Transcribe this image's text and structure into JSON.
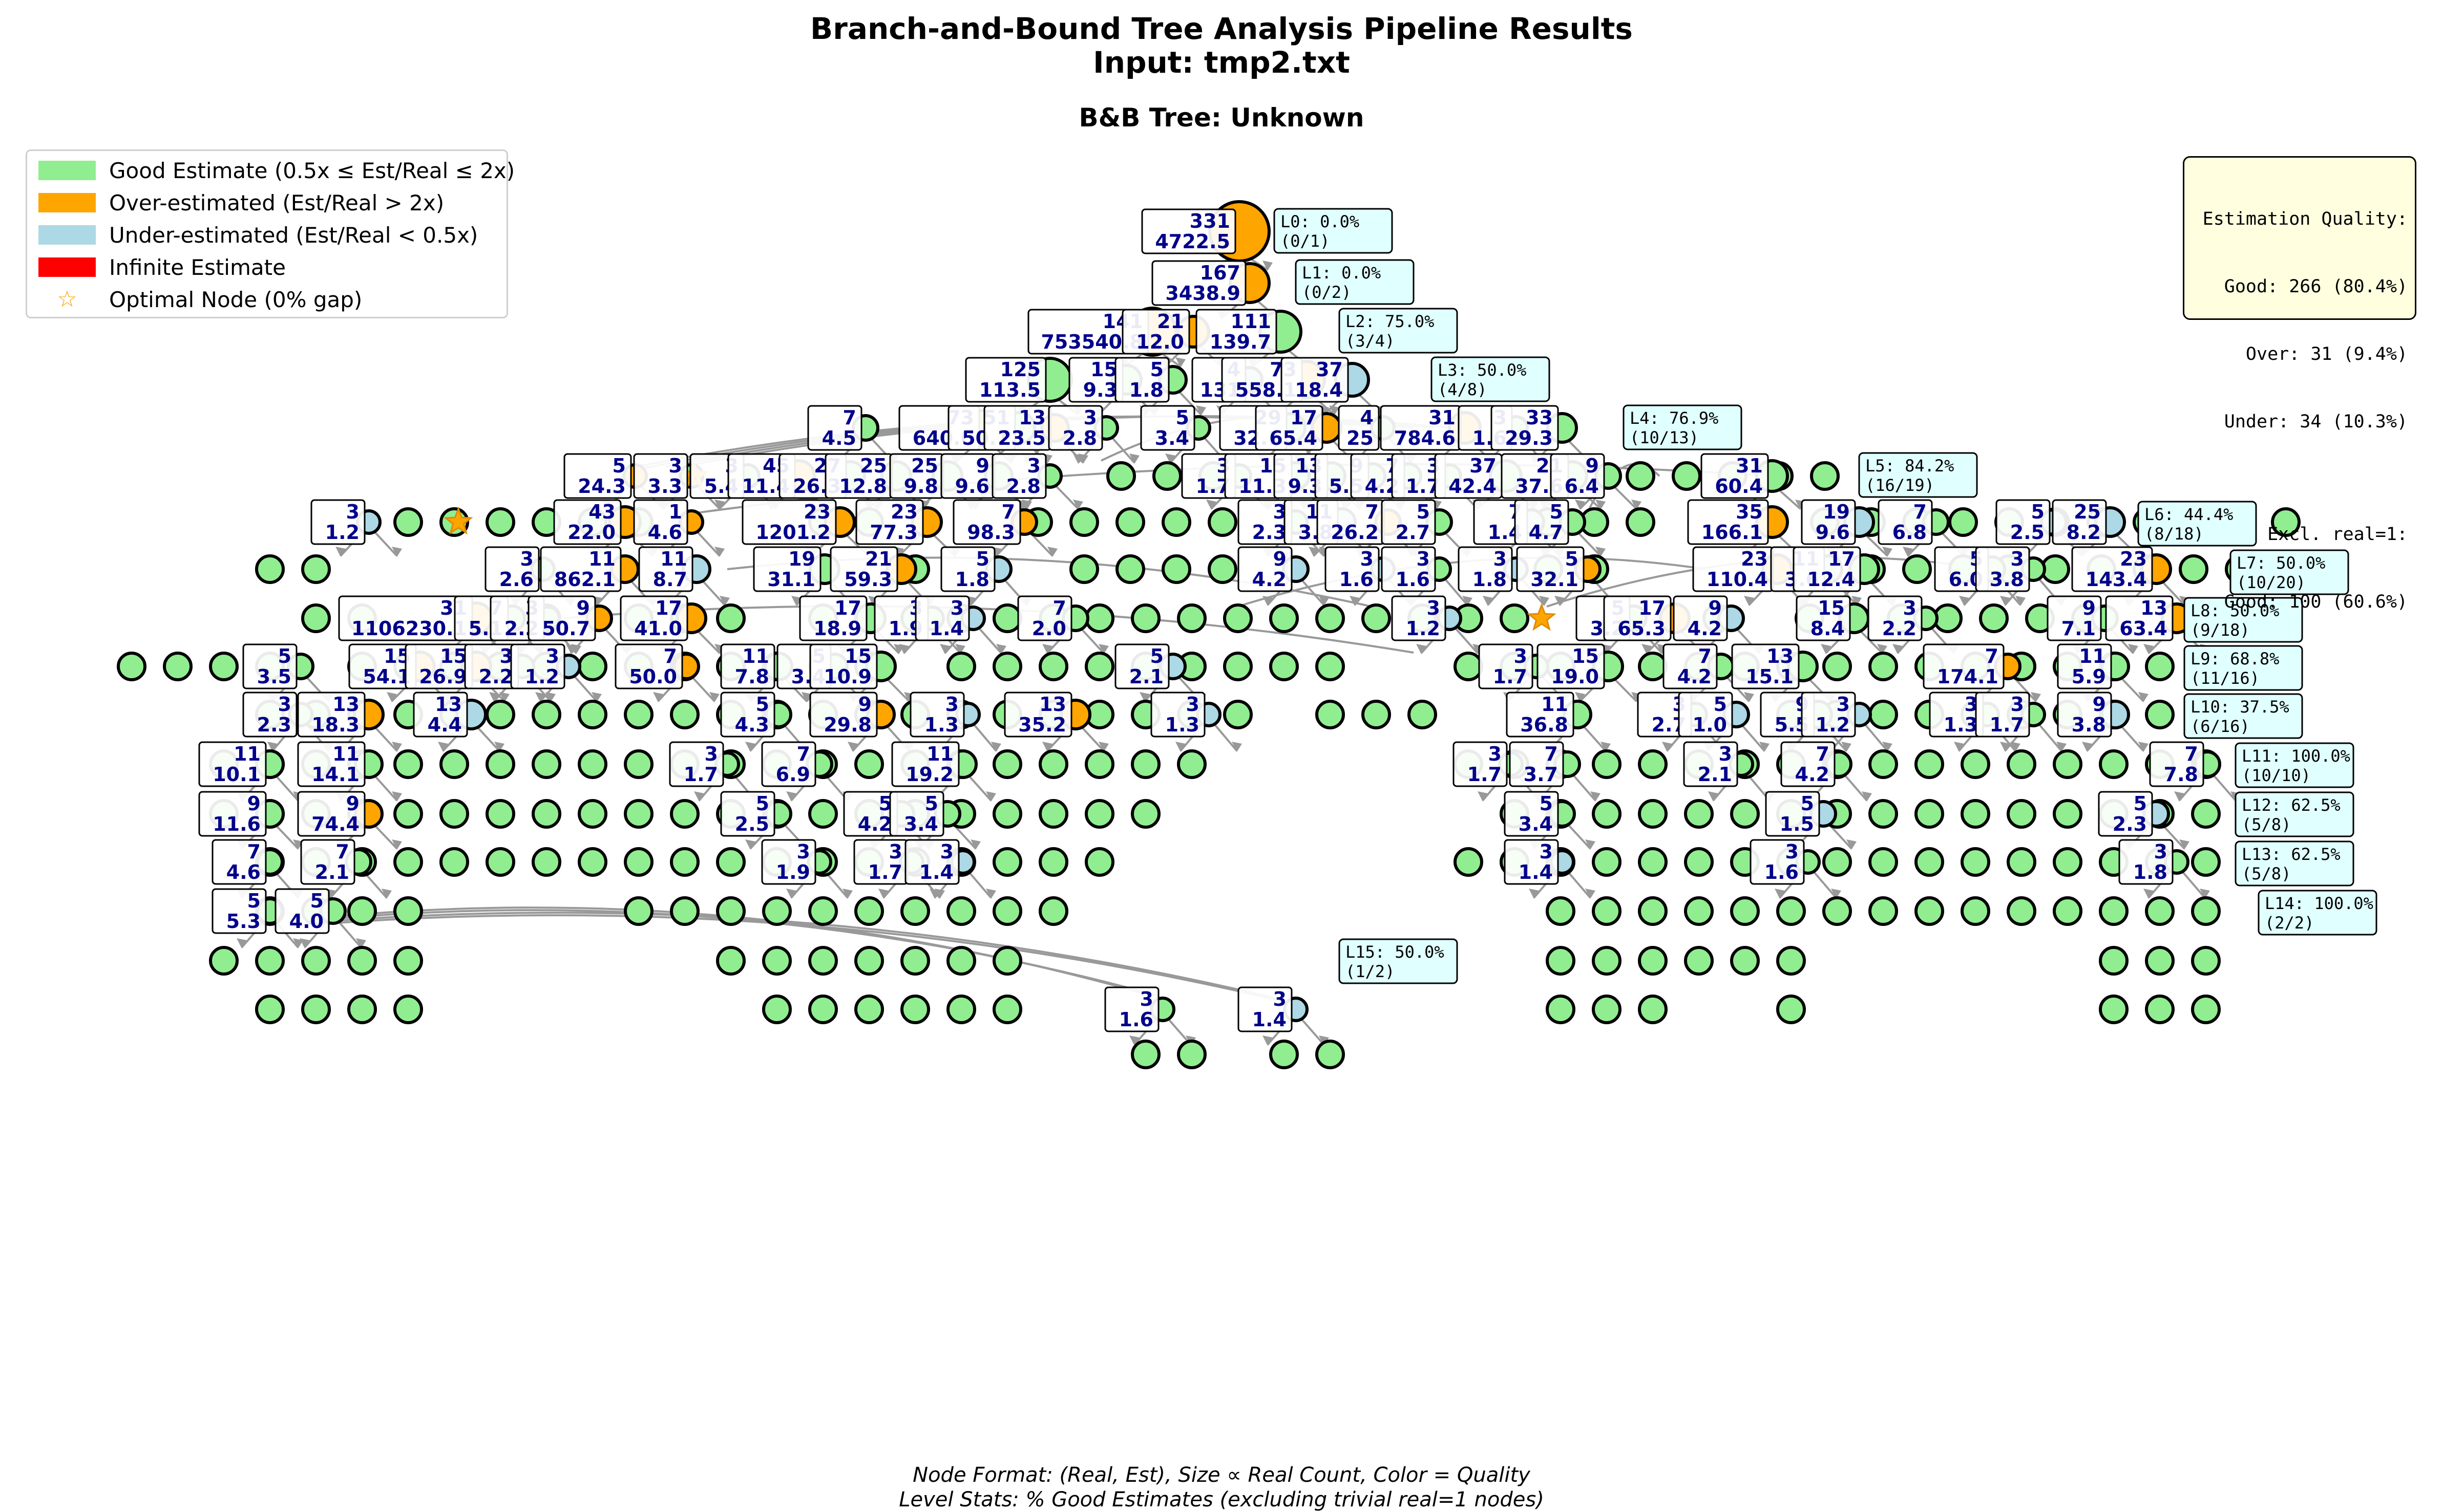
{
  "title": {
    "line1": "Branch-and-Bound Tree Analysis Pipeline Results",
    "line2": "Input: tmp2.txt"
  },
  "subtitle": "B&B Tree: Unknown",
  "legend": [
    {
      "color": "#90ee90",
      "label": "Good Estimate (0.5x ≤ Est/Real ≤ 2x)"
    },
    {
      "color": "#ffa500",
      "label": "Over-estimated (Est/Real > 2x)"
    },
    {
      "color": "#add8e6",
      "label": "Under-estimated (Est/Real < 0.5x)"
    },
    {
      "color": "#ff0000",
      "label": "Infinite Estimate"
    },
    {
      "icon": "star-icon",
      "color": "#ffa500",
      "label": "Optimal Node (0% gap)"
    }
  ],
  "quality_box": {
    "lines": [
      "Estimation Quality:",
      "Good: 266 (80.4%)",
      "Over: 31 (9.4%)",
      "Under: 34 (10.3%)",
      "",
      "Excl. real=1:",
      "Good: 100 (60.6%)"
    ]
  },
  "footer": {
    "line1": "Node Format: (Real, Est), Size ∝ Real Count, Color = Quality",
    "line2": "Level Stats: % Good Estimates (excluding trivial real=1 nodes)"
  },
  "colors": {
    "good": "#90ee90",
    "over": "#ffa500",
    "under": "#add8e6",
    "label_text": "#00008b",
    "stat_bg": "#e0ffff"
  },
  "level_stats": [
    {
      "line1": "L0: 0.0%",
      "line2": "(0/1)"
    },
    {
      "line1": "L1: 0.0%",
      "line2": "(0/2)"
    },
    {
      "line1": "L2: 75.0%",
      "line2": "(3/4)"
    },
    {
      "line1": "L3: 50.0%",
      "line2": "(4/8)"
    },
    {
      "line1": "L4: 76.9%",
      "line2": "(10/13)"
    },
    {
      "line1": "L5: 84.2%",
      "line2": "(16/19)"
    },
    {
      "line1": "L6: 44.4%",
      "line2": "(8/18)"
    },
    {
      "line1": "L7: 50.0%",
      "line2": "(10/20)"
    },
    {
      "line1": "L8: 50.0%",
      "line2": "(9/18)"
    },
    {
      "line1": "L9: 68.8%",
      "line2": "(11/16)"
    },
    {
      "line1": "L10: 37.5%",
      "line2": "(6/16)"
    },
    {
      "line1": "L11: 100.0%",
      "line2": "(10/10)"
    },
    {
      "line1": "L12: 62.5%",
      "line2": "(5/8)"
    },
    {
      "line1": "L13: 62.5%",
      "line2": "(5/8)"
    },
    {
      "line1": "L14: 100.0%",
      "line2": "(2/2)"
    },
    {
      "line1": "L15: 50.0%",
      "line2": "(1/2)"
    }
  ],
  "node_labels": [
    {
      "real": "331",
      "est": "4722.5"
    },
    {
      "real": "167",
      "est": "3438.9"
    },
    {
      "real": "141",
      "est": "753540.8"
    },
    {
      "real": "21",
      "est": "12.0"
    },
    {
      "real": "111",
      "est": "139.7"
    },
    {
      "real": "125",
      "est": "113.5"
    },
    {
      "real": "15",
      "est": "9.3"
    },
    {
      "real": "5",
      "est": "1.8"
    },
    {
      "real": "4",
      "est": "131"
    },
    {
      "real": "73",
      "est": "558.1"
    },
    {
      "real": "37",
      "est": "18.4"
    },
    {
      "real": "7",
      "est": "4.5"
    },
    {
      "real": "73",
      "est": "640.0"
    },
    {
      "real": "51",
      "est": "50.1"
    },
    {
      "real": "13",
      "est": "23.5"
    },
    {
      "real": "3",
      "est": "2.8"
    },
    {
      "real": "5",
      "est": "3.4"
    },
    {
      "real": "29",
      "est": "32.1"
    },
    {
      "real": "17",
      "est": "65.4"
    },
    {
      "real": "4",
      "est": "25"
    },
    {
      "real": "31",
      "est": "784.6"
    },
    {
      "real": "3",
      "est": "1.6"
    },
    {
      "real": "33",
      "est": "29.3"
    },
    {
      "real": "5",
      "est": "24.3"
    },
    {
      "real": "3",
      "est": "3.3"
    },
    {
      "real": "3",
      "est": "5.4"
    },
    {
      "real": "45",
      "est": "11.4"
    },
    {
      "real": "27",
      "est": "26.3"
    },
    {
      "real": "25",
      "est": "12.8"
    },
    {
      "real": "25",
      "est": "9.8"
    },
    {
      "real": "9",
      "est": "9.6"
    },
    {
      "real": "3",
      "est": "2.8"
    },
    {
      "real": "3",
      "est": "1.7"
    },
    {
      "real": "15",
      "est": "11.3"
    },
    {
      "real": "13",
      "est": "9.3"
    },
    {
      "real": "9",
      "est": "5.5"
    },
    {
      "real": "7",
      "est": "4.2"
    },
    {
      "real": "3",
      "est": "1.7"
    },
    {
      "real": "37",
      "est": "42.4"
    },
    {
      "real": "21",
      "est": "37.6"
    },
    {
      "real": "9",
      "est": "6.4"
    },
    {
      "real": "31",
      "est": "60.4"
    },
    {
      "real": "3",
      "est": "1.2"
    },
    {
      "real": "43",
      "est": "22.0"
    },
    {
      "real": "1",
      "est": "4.6"
    },
    {
      "real": "23",
      "est": "1201.2"
    },
    {
      "real": "23",
      "est": "77.3"
    },
    {
      "real": "7",
      "est": "98.3"
    },
    {
      "real": "3",
      "est": "2.3"
    },
    {
      "real": "11",
      "est": "3.8"
    },
    {
      "real": "7",
      "est": "26.2"
    },
    {
      "real": "5",
      "est": "2.7"
    },
    {
      "real": "7",
      "est": "1.4"
    },
    {
      "real": "5",
      "est": "4.7"
    },
    {
      "real": "35",
      "est": "166.1"
    },
    {
      "real": "19",
      "est": "9.6"
    },
    {
      "real": "7",
      "est": "6.8"
    },
    {
      "real": "5",
      "est": "2.5"
    },
    {
      "real": "25",
      "est": "8.2"
    },
    {
      "real": "3",
      "est": "2.6"
    },
    {
      "real": "11",
      "est": "862.1"
    },
    {
      "real": "11",
      "est": "8.7"
    },
    {
      "real": "19",
      "est": "31.1"
    },
    {
      "real": "21",
      "est": "59.3"
    },
    {
      "real": "5",
      "est": "1.8"
    },
    {
      "real": "9",
      "est": "4.2"
    },
    {
      "real": "3",
      "est": "1.6"
    },
    {
      "real": "3",
      "est": "1.6"
    },
    {
      "real": "3",
      "est": "1.8"
    },
    {
      "real": "5",
      "est": "32.1"
    },
    {
      "real": "23",
      "est": "110.4"
    },
    {
      "real": "11",
      "est": "3.6"
    },
    {
      "real": "17",
      "est": "12.4"
    },
    {
      "real": "5",
      "est": "6.0"
    },
    {
      "real": "3",
      "est": "3.8"
    },
    {
      "real": "23",
      "est": "143.4"
    },
    {
      "real": "31",
      "est": "1106230.1"
    },
    {
      "real": "7",
      "est": "5.1"
    },
    {
      "real": "3",
      "est": "2.2"
    },
    {
      "real": "9",
      "est": "50.7"
    },
    {
      "real": "17",
      "est": "41.0"
    },
    {
      "real": "17",
      "est": "18.9"
    },
    {
      "real": "3",
      "est": "1.9"
    },
    {
      "real": "3",
      "est": "1.4"
    },
    {
      "real": "7",
      "est": "2.0"
    },
    {
      "real": "3",
      "est": "1.2"
    },
    {
      "real": "5",
      "est": "3.2"
    },
    {
      "real": "17",
      "est": "65.3"
    },
    {
      "real": "9",
      "est": "4.2"
    },
    {
      "real": "15",
      "est": "8.4"
    },
    {
      "real": "3",
      "est": "2.2"
    },
    {
      "real": "9",
      "est": "7.1"
    },
    {
      "real": "13",
      "est": "63.4"
    },
    {
      "real": "5",
      "est": "3.5"
    },
    {
      "real": "15",
      "est": "54.1"
    },
    {
      "real": "15",
      "est": "26.9"
    },
    {
      "real": "3",
      "est": "2.2"
    },
    {
      "real": "3",
      "est": "1.2"
    },
    {
      "real": "7",
      "est": "50.0"
    },
    {
      "real": "11",
      "est": "7.8"
    },
    {
      "real": "5",
      "est": "3.4"
    },
    {
      "real": "15",
      "est": "10.9"
    },
    {
      "real": "5",
      "est": "2.1"
    },
    {
      "real": "3",
      "est": "1.7"
    },
    {
      "real": "15",
      "est": "19.0"
    },
    {
      "real": "7",
      "est": "4.2"
    },
    {
      "real": "13",
      "est": "15.1"
    },
    {
      "real": "7",
      "est": "174.1"
    },
    {
      "real": "11",
      "est": "5.9"
    },
    {
      "real": "3",
      "est": "2.3"
    },
    {
      "real": "13",
      "est": "18.3"
    },
    {
      "real": "13",
      "est": "4.4"
    },
    {
      "real": "5",
      "est": "4.3"
    },
    {
      "real": "9",
      "est": "29.8"
    },
    {
      "real": "3",
      "est": "1.3"
    },
    {
      "real": "13",
      "est": "35.2"
    },
    {
      "real": "3",
      "est": "1.3"
    },
    {
      "real": "11",
      "est": "36.8"
    },
    {
      "real": "3",
      "est": "2.7"
    },
    {
      "real": "5",
      "est": "1.0"
    },
    {
      "real": "9",
      "est": "5.5"
    },
    {
      "real": "3",
      "est": "1.2"
    },
    {
      "real": "3",
      "est": "1.3"
    },
    {
      "real": "3",
      "est": "1.7"
    },
    {
      "real": "9",
      "est": "3.8"
    },
    {
      "real": "11",
      "est": "10.1"
    },
    {
      "real": "11",
      "est": "14.1"
    },
    {
      "real": "3",
      "est": "1.7"
    },
    {
      "real": "7",
      "est": "6.9"
    },
    {
      "real": "11",
      "est": "19.2"
    },
    {
      "real": "3",
      "est": "1.7"
    },
    {
      "real": "7",
      "est": "3.7"
    },
    {
      "real": "3",
      "est": "2.1"
    },
    {
      "real": "7",
      "est": "4.2"
    },
    {
      "real": "7",
      "est": "7.8"
    },
    {
      "real": "9",
      "est": "11.6"
    },
    {
      "real": "9",
      "est": "74.4"
    },
    {
      "real": "5",
      "est": "2.5"
    },
    {
      "real": "5",
      "est": "4.2"
    },
    {
      "real": "5",
      "est": "3.4"
    },
    {
      "real": "5",
      "est": "3.4"
    },
    {
      "real": "5",
      "est": "1.5"
    },
    {
      "real": "5",
      "est": "2.3"
    },
    {
      "real": "7",
      "est": "4.6"
    },
    {
      "real": "7",
      "est": "2.1"
    },
    {
      "real": "3",
      "est": "1.9"
    },
    {
      "real": "3",
      "est": "1.7"
    },
    {
      "real": "3",
      "est": "1.4"
    },
    {
      "real": "3",
      "est": "1.4"
    },
    {
      "real": "3",
      "est": "1.6"
    },
    {
      "real": "3",
      "est": "1.8"
    },
    {
      "real": "5",
      "est": "5.3"
    },
    {
      "real": "5",
      "est": "4.0"
    },
    {
      "real": "3",
      "est": "1.6"
    },
    {
      "real": "3",
      "est": "1.4"
    }
  ]
}
